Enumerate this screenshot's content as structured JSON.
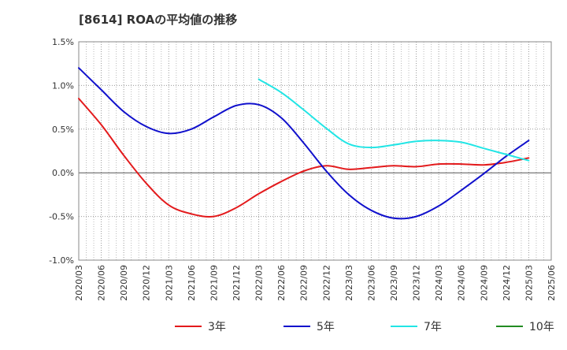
{
  "chart_data": {
    "type": "line",
    "title": "[8614]  ROAの平均値の推移",
    "xlabel": "",
    "ylabel": "",
    "ylim": [
      -1.0,
      1.5
    ],
    "y_ticks": [
      "1.5%",
      "1.0%",
      "0.5%",
      "0.0%",
      "-0.5%",
      "-1.0%"
    ],
    "y_tick_values": [
      1.5,
      1.0,
      0.5,
      0.0,
      -0.5,
      -1.0
    ],
    "x_ticks": [
      "2020/03",
      "2020/06",
      "2020/09",
      "2020/12",
      "2021/03",
      "2021/06",
      "2021/09",
      "2021/12",
      "2022/03",
      "2022/06",
      "2022/09",
      "2022/12",
      "2023/03",
      "2023/06",
      "2023/09",
      "2023/12",
      "2024/03",
      "2024/06",
      "2024/09",
      "2024/12",
      "2025/03",
      "2025/06"
    ],
    "grid": true,
    "legend": "bottom",
    "series": [
      {
        "name": "3年",
        "color": "#e31a1c",
        "points": [
          [
            "2020/03",
            0.85
          ],
          [
            "2020/06",
            0.55
          ],
          [
            "2020/09",
            0.2
          ],
          [
            "2020/12",
            -0.12
          ],
          [
            "2021/03",
            -0.37
          ],
          [
            "2021/06",
            -0.47
          ],
          [
            "2021/09",
            -0.5
          ],
          [
            "2021/12",
            -0.4
          ],
          [
            "2022/03",
            -0.24
          ],
          [
            "2022/06",
            -0.1
          ],
          [
            "2022/09",
            0.02
          ],
          [
            "2022/12",
            0.08
          ],
          [
            "2023/03",
            0.04
          ],
          [
            "2023/06",
            0.06
          ],
          [
            "2023/09",
            0.08
          ],
          [
            "2023/12",
            0.07
          ],
          [
            "2024/03",
            0.1
          ],
          [
            "2024/06",
            0.1
          ],
          [
            "2024/09",
            0.09
          ],
          [
            "2024/12",
            0.12
          ],
          [
            "2025/03",
            0.17
          ]
        ]
      },
      {
        "name": "5年",
        "color": "#1010cc",
        "points": [
          [
            "2020/03",
            1.2
          ],
          [
            "2020/06",
            0.95
          ],
          [
            "2020/09",
            0.7
          ],
          [
            "2020/12",
            0.53
          ],
          [
            "2021/03",
            0.45
          ],
          [
            "2021/06",
            0.5
          ],
          [
            "2021/09",
            0.64
          ],
          [
            "2021/12",
            0.77
          ],
          [
            "2022/03",
            0.78
          ],
          [
            "2022/06",
            0.63
          ],
          [
            "2022/09",
            0.34
          ],
          [
            "2022/12",
            0.02
          ],
          [
            "2023/03",
            -0.25
          ],
          [
            "2023/06",
            -0.43
          ],
          [
            "2023/09",
            -0.52
          ],
          [
            "2023/12",
            -0.5
          ],
          [
            "2024/03",
            -0.38
          ],
          [
            "2024/06",
            -0.2
          ],
          [
            "2024/09",
            -0.01
          ],
          [
            "2024/12",
            0.19
          ],
          [
            "2025/03",
            0.37
          ]
        ]
      },
      {
        "name": "7年",
        "color": "#22e5e5",
        "points": [
          [
            "2022/03",
            1.07
          ],
          [
            "2022/06",
            0.92
          ],
          [
            "2022/09",
            0.72
          ],
          [
            "2022/12",
            0.51
          ],
          [
            "2023/03",
            0.33
          ],
          [
            "2023/06",
            0.29
          ],
          [
            "2023/09",
            0.32
          ],
          [
            "2023/12",
            0.36
          ],
          [
            "2024/03",
            0.37
          ],
          [
            "2024/06",
            0.35
          ],
          [
            "2024/09",
            0.28
          ],
          [
            "2024/12",
            0.21
          ],
          [
            "2025/03",
            0.14
          ]
        ]
      },
      {
        "name": "10年",
        "color": "#228b22",
        "points": []
      }
    ]
  }
}
